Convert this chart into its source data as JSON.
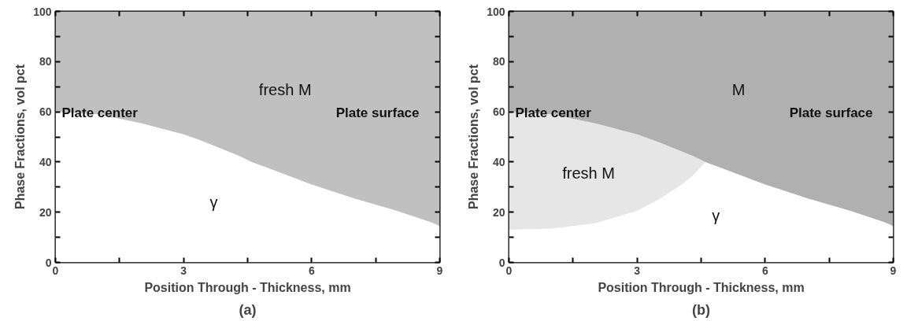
{
  "chart_data": [
    {
      "type": "area",
      "stacked": true,
      "title": "(a)",
      "xlabel": "Position Through - Thickness, mm",
      "ylabel": "Phase Fractions, vol pct",
      "x": [
        0,
        1,
        2,
        3,
        3.5,
        4,
        4.3,
        4.6,
        5,
        6,
        7,
        8,
        8.8,
        9
      ],
      "series": [
        {
          "name": "γ",
          "color": "#ffffff",
          "values": [
            60,
            59,
            55.5,
            51,
            48,
            44.5,
            42.5,
            40,
            37.5,
            31,
            25.5,
            20.5,
            16,
            14.5
          ]
        },
        {
          "name": "fresh M",
          "color": "#c0c0c0",
          "values": [
            40,
            41,
            44.5,
            49,
            52,
            55.5,
            57.5,
            60,
            62.5,
            69,
            74.5,
            79.5,
            84,
            85.5
          ]
        }
      ],
      "xlim": [
        0,
        9
      ],
      "ylim": [
        0,
        100
      ],
      "xticks": [
        0,
        {
          "value": 1.5,
          "label": null
        },
        3,
        {
          "value": 4.5,
          "label": null
        },
        6,
        {
          "value": 7.5,
          "label": null
        },
        9
      ],
      "yticks": [
        0,
        {
          "value": 10,
          "label": null
        },
        20,
        {
          "value": 30,
          "label": null
        },
        40,
        {
          "value": 50,
          "label": null
        },
        60,
        {
          "value": 70,
          "label": null
        },
        80,
        {
          "value": 90,
          "label": null
        },
        100
      ],
      "grid": false,
      "legend": false,
      "annotations": [
        "Plate center",
        "Plate surface"
      ]
    },
    {
      "type": "area",
      "stacked": true,
      "title": "(b)",
      "xlabel": "Position Through - Thickness, mm",
      "ylabel": "Phase Fractions, vol pct",
      "x": [
        0,
        1,
        2,
        3,
        3.5,
        4,
        4.3,
        4.6,
        5,
        6,
        7,
        8,
        8.8,
        9
      ],
      "series": [
        {
          "name": "γ",
          "color": "#ffffff",
          "values": [
            13,
            13.5,
            15.5,
            20.5,
            25,
            30.5,
            34.5,
            40,
            37.5,
            31,
            25.5,
            20.5,
            16,
            14.5
          ]
        },
        {
          "name": "fresh M",
          "color": "#e6e6e6",
          "values": [
            47,
            45.5,
            40,
            30.5,
            23,
            14,
            8,
            0,
            0,
            0,
            0,
            0,
            0,
            0
          ]
        },
        {
          "name": "M",
          "color": "#b0b0b0",
          "values": [
            40,
            41,
            44.5,
            49,
            52,
            55.5,
            57.5,
            60,
            62.5,
            69,
            74.5,
            79.5,
            84,
            85.5
          ]
        }
      ],
      "xlim": [
        0,
        9
      ],
      "ylim": [
        0,
        100
      ],
      "xticks": [
        0,
        {
          "value": 1.5,
          "label": null
        },
        3,
        {
          "value": 4.5,
          "label": null
        },
        6,
        {
          "value": 7.5,
          "label": null
        },
        9
      ],
      "yticks": [
        0,
        {
          "value": 10,
          "label": null
        },
        20,
        {
          "value": 30,
          "label": null
        },
        40,
        {
          "value": 50,
          "label": null
        },
        60,
        {
          "value": 70,
          "label": null
        },
        80,
        {
          "value": 90,
          "label": null
        },
        100
      ],
      "grid": false,
      "legend": false,
      "annotations": [
        "Plate center",
        "Plate surface"
      ]
    }
  ]
}
